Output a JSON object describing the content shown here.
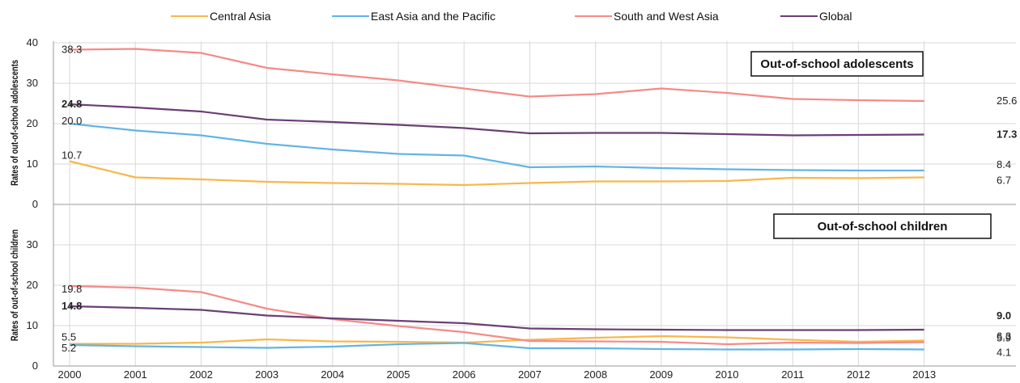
{
  "chart_data": [
    {
      "type": "line",
      "title": "Out-of-school adolescents",
      "ylabel": "Rates of out-of-school adolescents",
      "xlabel": "",
      "x": [
        "2000",
        "2001",
        "2002",
        "2003",
        "2004",
        "2005",
        "2006",
        "2007",
        "2008",
        "2009",
        "2010",
        "2011",
        "2012",
        "2013"
      ],
      "ylim": [
        0,
        40
      ],
      "yticks": [
        "0",
        "10",
        "20",
        "30",
        "40"
      ],
      "grid": true,
      "series": [
        {
          "name": "Central Asia",
          "color": "#f8b74a",
          "values": [
            10.7,
            6.7,
            6.2,
            5.6,
            5.3,
            5.1,
            4.8,
            5.3,
            5.7,
            5.7,
            5.8,
            6.6,
            6.5,
            6.7
          ],
          "start_label": "10.7",
          "end_label": "6.7",
          "bold": false
        },
        {
          "name": "East Asia and the Pacific",
          "color": "#62b4e6",
          "values": [
            20.0,
            18.3,
            17.1,
            15.0,
            13.6,
            12.5,
            12.1,
            9.2,
            9.4,
            9.0,
            8.7,
            8.5,
            8.4,
            8.4
          ],
          "start_label": "20.0",
          "end_label": "8.4",
          "bold": false
        },
        {
          "name": "South and West Asia",
          "color": "#f58a87",
          "values": [
            38.3,
            38.5,
            37.5,
            33.8,
            32.2,
            30.7,
            28.7,
            26.7,
            27.3,
            28.7,
            27.6,
            26.1,
            25.8,
            25.6
          ],
          "start_label": "38.3",
          "end_label": "25.6",
          "bold": false
        },
        {
          "name": "Global",
          "color": "#6b3f74",
          "values": [
            24.8,
            24.0,
            23.0,
            21.0,
            20.4,
            19.7,
            18.9,
            17.6,
            17.7,
            17.7,
            17.4,
            17.1,
            17.2,
            17.3
          ],
          "start_label": "24.8",
          "end_label": "17.3",
          "bold": true
        }
      ]
    },
    {
      "type": "line",
      "title": "Out-of-school children",
      "ylabel": "Rates of out-of-school children",
      "xlabel": "",
      "x": [
        "2000",
        "2001",
        "2002",
        "2003",
        "2004",
        "2005",
        "2006",
        "2007",
        "2008",
        "2009",
        "2010",
        "2011",
        "2012",
        "2013"
      ],
      "ylim": [
        0,
        40
      ],
      "yticks": [
        "0",
        "10",
        "20",
        "30"
      ],
      "grid": true,
      "series": [
        {
          "name": "Central Asia",
          "color": "#f8b74a",
          "values": [
            5.5,
            5.5,
            5.8,
            6.6,
            6.1,
            6.0,
            5.8,
            6.5,
            7.0,
            7.4,
            7.1,
            6.5,
            6.0,
            6.3
          ],
          "start_label": "5.5",
          "end_label": "6.3",
          "bold": false
        },
        {
          "name": "East Asia and the Pacific",
          "color": "#62b4e6",
          "values": [
            5.2,
            4.9,
            4.7,
            4.5,
            4.8,
            5.4,
            5.7,
            4.4,
            4.4,
            4.2,
            4.1,
            4.1,
            4.2,
            4.1
          ],
          "start_label": "5.2",
          "end_label": "4.1",
          "bold": false
        },
        {
          "name": "South and West Asia",
          "color": "#f58a87",
          "values": [
            19.8,
            19.4,
            18.3,
            14.2,
            11.6,
            9.9,
            8.4,
            6.2,
            6.1,
            6.0,
            5.4,
            5.8,
            5.7,
            5.9
          ],
          "start_label": "19.8",
          "end_label": "5.9",
          "bold": false
        },
        {
          "name": "Global",
          "color": "#6b3f74",
          "values": [
            14.8,
            14.4,
            13.9,
            12.5,
            11.8,
            11.2,
            10.6,
            9.3,
            9.1,
            9.0,
            8.9,
            8.9,
            8.9,
            9.0
          ],
          "start_label": "14.8",
          "end_label": "9.0",
          "bold": true
        }
      ]
    }
  ],
  "legend": {
    "placement": "top-center",
    "items": [
      {
        "name": "Central Asia",
        "color": "#f8b74a"
      },
      {
        "name": "East Asia and the Pacific",
        "color": "#62b4e6"
      },
      {
        "name": "South and West Asia",
        "color": "#f58a87"
      },
      {
        "name": "Global",
        "color": "#6b3f74"
      }
    ]
  }
}
